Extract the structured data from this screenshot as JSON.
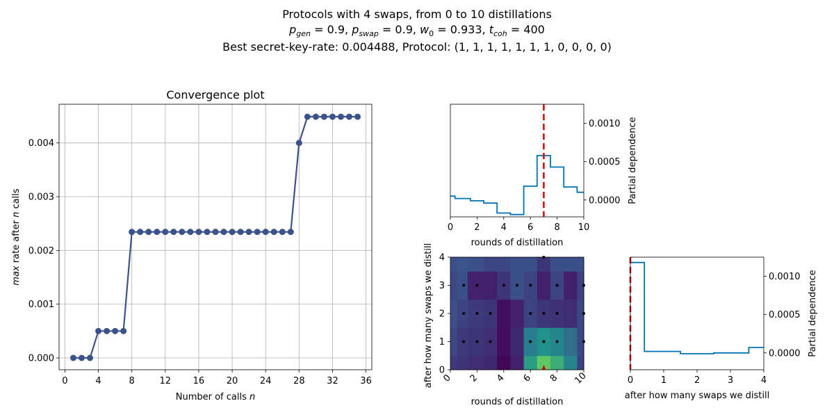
{
  "figure": {
    "title_line1": "Protocols with 4 swaps, from 0 to 10 distillations",
    "title_line2": "p_gen = 0.9, p_swap = 0.9, w_0 = 0.933, t_coh = 400",
    "title_line3": "Best secret-key-rate: 0.004488, Protocol: (1, 1, 1, 1, 1, 1, 1, 0, 0, 0, 0)"
  },
  "chart_data": [
    {
      "id": "convergence",
      "type": "line",
      "title": "Convergence plot",
      "xlabel": "Number of calls n",
      "ylabel": "max rate after n calls",
      "xlim": [
        -0.7,
        36.7
      ],
      "ylim": [
        -0.00022,
        0.00472
      ],
      "xticks": [
        0,
        4,
        8,
        12,
        16,
        20,
        24,
        28,
        32,
        36
      ],
      "yticks": [
        0.0,
        0.001,
        0.002,
        0.003,
        0.004
      ],
      "ytick_labels": [
        "0.000",
        "0.001",
        "0.002",
        "0.003",
        "0.004"
      ],
      "grid": true,
      "color": "#3b528b",
      "x": [
        1,
        2,
        3,
        4,
        5,
        6,
        7,
        8,
        9,
        10,
        11,
        12,
        13,
        14,
        15,
        16,
        17,
        18,
        19,
        20,
        21,
        22,
        23,
        24,
        25,
        26,
        27,
        28,
        29,
        30,
        31,
        32,
        33,
        34,
        35
      ],
      "y": [
        0,
        0,
        0,
        0.0005,
        0.0005,
        0.0005,
        0.0005,
        0.002345,
        0.002345,
        0.002345,
        0.002345,
        0.002345,
        0.002345,
        0.002345,
        0.002345,
        0.002345,
        0.002345,
        0.002345,
        0.002345,
        0.002345,
        0.002345,
        0.002345,
        0.002345,
        0.002345,
        0.002345,
        0.002345,
        0.002345,
        0.004,
        0.004488,
        0.004488,
        0.004488,
        0.004488,
        0.004488,
        0.004488,
        0.004488
      ]
    },
    {
      "id": "pd_distill",
      "type": "line",
      "xlabel": "rounds of distillation",
      "ylabel": "Partial dependence",
      "xlim": [
        0,
        10
      ],
      "ylim": [
        -0.00022,
        0.00125
      ],
      "xticks": [
        0,
        2,
        4,
        6,
        8,
        10
      ],
      "yticks": [
        0.0,
        0.0005,
        0.001
      ],
      "ytick_labels": [
        "0.0000",
        "0.0005",
        "0.0010"
      ],
      "color": "#0072b2",
      "best_x": 7,
      "best_color": "#dd0000",
      "x": [
        0,
        0.35,
        0.35,
        1.5,
        1.5,
        2.5,
        2.5,
        3.5,
        3.5,
        4.5,
        4.5,
        5.5,
        5.5,
        6.5,
        6.5,
        7.5,
        7.5,
        8.5,
        8.5,
        9.5,
        9.5,
        10
      ],
      "y": [
        5e-05,
        5e-05,
        2e-05,
        2e-05,
        -1e-05,
        -1e-05,
        -4e-05,
        -4e-05,
        -0.00017,
        -0.00017,
        -0.00019,
        -0.00019,
        0.00018,
        0.00018,
        0.00058,
        0.00058,
        0.00043,
        0.00043,
        0.00017,
        0.00017,
        0.0001,
        0.0001
      ]
    },
    {
      "id": "pd_swaps",
      "type": "line",
      "xlabel": "after how many swaps we distill",
      "ylabel": "Partial dependence",
      "xlim": [
        0,
        4
      ],
      "ylim": [
        -0.00022,
        0.00125
      ],
      "xticks": [
        0,
        1,
        2,
        3,
        4
      ],
      "yticks": [
        0.0,
        0.0005,
        0.001
      ],
      "ytick_labels": [
        "0.0000",
        "0.0005",
        "0.0010"
      ],
      "color": "#0072b2",
      "best_x": 0,
      "best_color": "#dd0000",
      "x": [
        0,
        0.42,
        0.42,
        1.5,
        1.5,
        2.5,
        2.5,
        3.55,
        3.55,
        4
      ],
      "y": [
        0.00118,
        0.00118,
        2e-05,
        2e-05,
        -1e-05,
        -1e-05,
        0.0,
        0.0,
        7e-05,
        7e-05
      ]
    },
    {
      "id": "pd_2d",
      "type": "heatmap",
      "xlabel": "rounds of distillation",
      "ylabel": "after how many swaps we distill",
      "xlim": [
        0,
        10
      ],
      "ylim": [
        0,
        4
      ],
      "xticks": [
        0,
        2,
        4,
        6,
        8,
        10
      ],
      "yticks": [
        0,
        1,
        2,
        3,
        4
      ],
      "colormap": "viridis",
      "x_edges": [
        0,
        0.5,
        1.3,
        2.5,
        3.5,
        4.5,
        5.5,
        6.5,
        7.5,
        8.5,
        9.5,
        10
      ],
      "y_edges": [
        0,
        0.5,
        1.5,
        2.5,
        3.5,
        4
      ],
      "grid_values": [
        [
          0.18,
          0.16,
          0.14,
          0.12,
          0.02,
          0.1,
          0.55,
          0.75,
          0.62,
          0.45,
          0.2
        ],
        [
          0.22,
          0.18,
          0.16,
          0.14,
          0.04,
          0.12,
          0.42,
          0.5,
          0.46,
          0.36,
          0.22
        ],
        [
          0.24,
          0.2,
          0.18,
          0.16,
          0.04,
          0.1,
          0.2,
          0.16,
          0.15,
          0.14,
          0.22
        ],
        [
          0.22,
          0.24,
          0.1,
          0.1,
          0.16,
          0.24,
          0.2,
          0.1,
          0.2,
          0.1,
          0.2
        ],
        [
          0.24,
          0.26,
          0.24,
          0.22,
          0.22,
          0.24,
          0.24,
          0.16,
          0.24,
          0.24,
          0.24
        ]
      ],
      "sample_points": [
        [
          1,
          1
        ],
        [
          2,
          1
        ],
        [
          3,
          1
        ],
        [
          6,
          1
        ],
        [
          7,
          1
        ],
        [
          8,
          1
        ],
        [
          10,
          1
        ],
        [
          1,
          2
        ],
        [
          2,
          2
        ],
        [
          3,
          2
        ],
        [
          6,
          2
        ],
        [
          7,
          2
        ],
        [
          8,
          2
        ],
        [
          10,
          2
        ],
        [
          1,
          3
        ],
        [
          2,
          3
        ],
        [
          4,
          3
        ],
        [
          5,
          3
        ],
        [
          6,
          3
        ],
        [
          8,
          3
        ],
        [
          10,
          3
        ],
        [
          7,
          4
        ]
      ],
      "best_point": [
        7,
        0
      ],
      "best_color": "#dd0000"
    }
  ]
}
